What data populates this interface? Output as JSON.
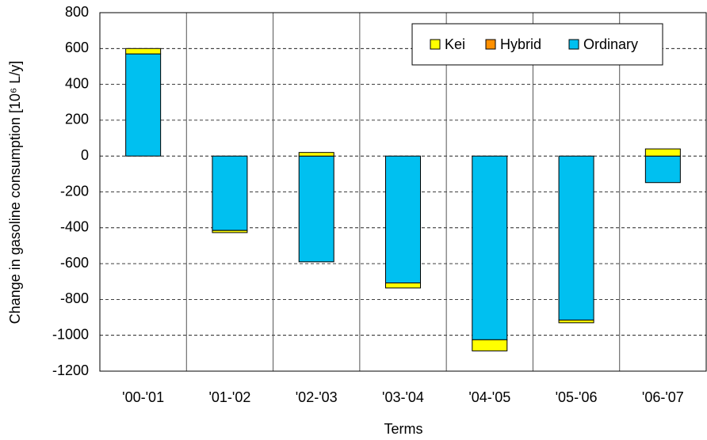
{
  "chart_data": {
    "type": "bar",
    "stacked": true,
    "y_label": "Change in gasoline consumption   [10⁶ L/y]",
    "x_label": "Terms",
    "categories": [
      "'00-'01",
      "'01-'02",
      "'02-'03",
      "'03-'04",
      "'04-'05",
      "'05-'06",
      "'06-'07"
    ],
    "series": [
      {
        "name": "Ordinary",
        "color": "#00c0f0",
        "values": [
          570,
          -415,
          -590,
          -708,
          -1025,
          -915,
          -148
        ]
      },
      {
        "name": "Hybrid",
        "color": "#ff9000",
        "values": [
          0,
          0,
          0,
          0,
          0,
          0,
          0
        ]
      },
      {
        "name": "Kei",
        "color": "#ffff00",
        "values": [
          30,
          -12,
          20,
          -28,
          -62,
          -15,
          40
        ]
      }
    ],
    "legend_order": [
      "Kei",
      "Hybrid",
      "Ordinary"
    ],
    "ylim": [
      -1200,
      800
    ],
    "yticks": [
      800,
      600,
      400,
      200,
      0,
      -200,
      -400,
      -600,
      -800,
      -1000,
      -1200
    ],
    "grid": true,
    "legend": "top-right"
  }
}
